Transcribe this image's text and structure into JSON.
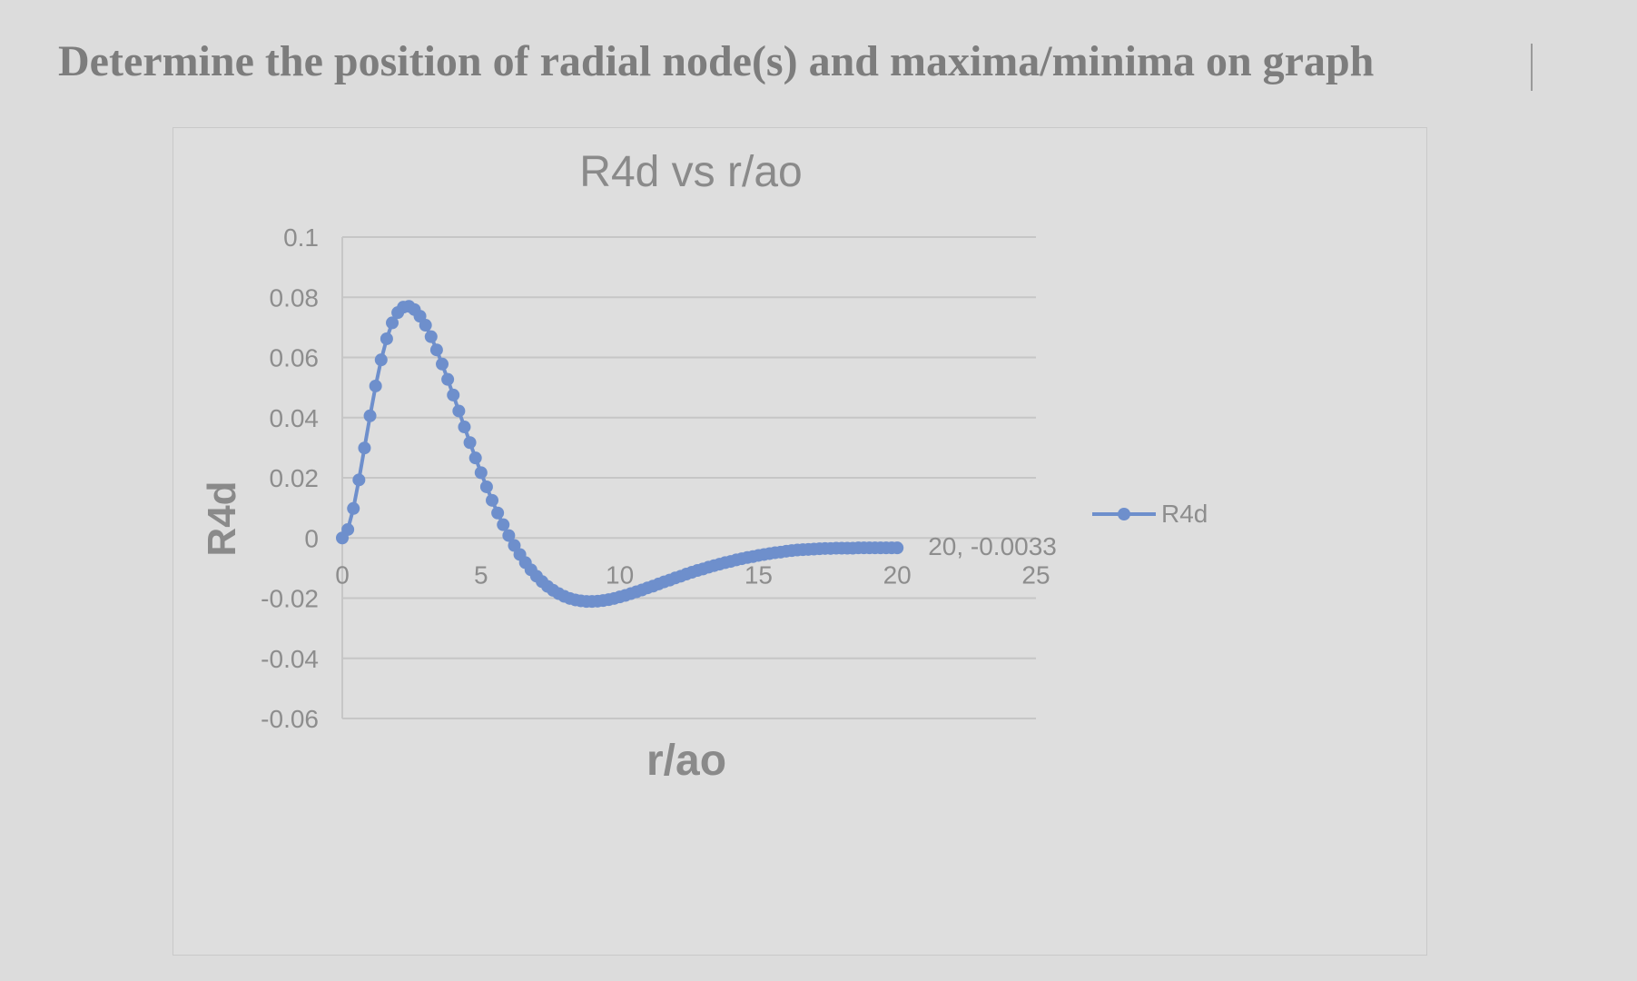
{
  "question": "Determine the position of radial node(s) and maxima/minima on graph",
  "colors": {
    "series": "#6e8fcc",
    "gridline": "#c6c6c6",
    "text": "#8d8d8d",
    "background": "#dcdcdc"
  },
  "chart_data": {
    "type": "scatter",
    "title": "R4d vs r/ao",
    "xlabel": "r/ao",
    "ylabel": "R4d",
    "xlim": [
      0,
      25
    ],
    "ylim": [
      -0.06,
      0.1
    ],
    "xticks": [
      "0",
      "5",
      "10",
      "15",
      "20",
      "25"
    ],
    "yticks": [
      "0.1",
      "0.08",
      "0.06",
      "0.04",
      "0.02",
      "0",
      "-0.02",
      "-0.04",
      "-0.06"
    ],
    "grid": true,
    "legend": "right",
    "series": [
      {
        "name": "R4d",
        "markers": "circle",
        "line": true,
        "x": [
          0,
          0.2,
          0.4,
          0.6,
          0.8,
          1,
          1.2,
          1.4,
          1.6,
          1.8,
          2,
          2.2,
          2.4,
          2.6,
          2.8,
          3,
          3.2,
          3.4,
          3.6,
          3.8,
          4,
          4.2,
          4.4,
          4.6,
          4.8,
          5,
          5.2,
          5.4,
          5.6,
          5.8,
          6,
          6.2,
          6.4,
          6.6,
          6.8,
          7,
          7.2,
          7.4,
          7.6,
          7.8,
          8,
          8.2,
          8.4,
          8.6,
          8.8,
          9,
          9.2,
          9.4,
          9.6,
          9.8,
          10,
          10.2,
          10.4,
          10.6,
          10.8,
          11,
          11.2,
          11.4,
          11.6,
          11.8,
          12,
          12.2,
          12.4,
          12.6,
          12.8,
          13,
          13.2,
          13.4,
          13.6,
          13.8,
          14,
          14.2,
          14.4,
          14.6,
          14.8,
          15,
          15.2,
          15.4,
          15.6,
          15.8,
          16,
          16.2,
          16.4,
          16.6,
          16.8,
          17,
          17.2,
          17.4,
          17.6,
          17.8,
          18,
          18.2,
          18.4,
          18.6,
          18.8,
          19,
          19.2,
          19.4,
          19.6,
          19.8,
          20
        ],
        "y": [
          0,
          0.0028,
          0.0098,
          0.0193,
          0.0299,
          0.0406,
          0.0505,
          0.0592,
          0.0662,
          0.0715,
          0.0749,
          0.0767,
          0.077,
          0.0759,
          0.0737,
          0.0707,
          0.0669,
          0.0625,
          0.0578,
          0.0527,
          0.0475,
          0.0422,
          0.0369,
          0.0317,
          0.0266,
          0.0217,
          0.017,
          0.0125,
          0.0083,
          0.0044,
          0.0008,
          -0.0025,
          -0.0055,
          -0.0082,
          -0.0106,
          -0.0127,
          -0.0145,
          -0.0161,
          -0.0174,
          -0.0185,
          -0.0194,
          -0.0201,
          -0.0206,
          -0.0209,
          -0.0211,
          -0.0211,
          -0.021,
          -0.0208,
          -0.0205,
          -0.0201,
          -0.0196,
          -0.0191,
          -0.0185,
          -0.0179,
          -0.0173,
          -0.0166,
          -0.016,
          -0.0153,
          -0.0146,
          -0.014,
          -0.0133,
          -0.0127,
          -0.012,
          -0.0114,
          -0.0108,
          -0.0103,
          -0.0097,
          -0.0092,
          -0.0087,
          -0.0082,
          -0.0078,
          -0.0073,
          -0.0069,
          -0.0065,
          -0.0062,
          -0.0058,
          -0.0055,
          -0.0052,
          -0.0049,
          -0.0047,
          -0.0044,
          -0.0042,
          -0.004,
          -0.0039,
          -0.0038,
          -0.0037,
          -0.0036,
          -0.0035,
          -0.0035,
          -0.0034,
          -0.0034,
          -0.0034,
          -0.0034,
          -0.0033,
          -0.0033,
          -0.0033,
          -0.0033,
          -0.0033,
          -0.0033,
          -0.0033,
          -0.0033
        ]
      }
    ],
    "annotations": [
      {
        "text": "20, -0.0033",
        "x": 20,
        "y": -0.0033
      }
    ]
  }
}
